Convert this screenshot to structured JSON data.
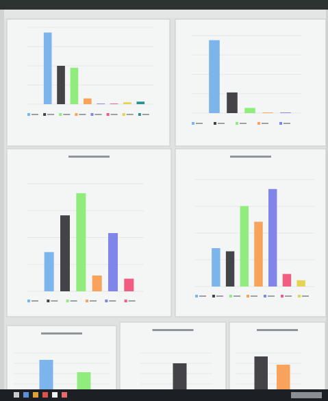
{
  "chart_data": [
    {
      "type": "bar",
      "ylim": [
        0,
        120
      ],
      "values": [
        112,
        60,
        57,
        9,
        1,
        1,
        3,
        4
      ],
      "colors": [
        "#7cb5ec",
        "#434348",
        "#90ed7d",
        "#f7a35c",
        "#8085e9",
        "#f15c80",
        "#e4d354",
        "#2b908f"
      ]
    },
    {
      "type": "bar",
      "ylim": [
        0,
        120
      ],
      "values": [
        113,
        32,
        8,
        1,
        1
      ],
      "colors": [
        "#7cb5ec",
        "#434348",
        "#90ed7d",
        "#f7a35c",
        "#8085e9"
      ]
    },
    {
      "type": "bar",
      "ylim": [
        0,
        170
      ],
      "values": [
        62,
        120,
        155,
        25,
        92,
        20
      ],
      "colors": [
        "#7cb5ec",
        "#434348",
        "#90ed7d",
        "#f7a35c",
        "#8085e9",
        "#f15c80"
      ]
    },
    {
      "type": "bar",
      "ylim": [
        0,
        170
      ],
      "values": [
        61,
        56,
        128,
        103,
        155,
        20,
        10
      ],
      "colors": [
        "#7cb5ec",
        "#434348",
        "#90ed7d",
        "#f7a35c",
        "#8085e9",
        "#f15c80",
        "#e4d354"
      ]
    },
    {
      "type": "bar",
      "ylim": [
        0,
        60
      ],
      "values": [
        50,
        32
      ],
      "colors": [
        "#7cb5ec",
        "#90ed7d"
      ]
    },
    {
      "type": "bar",
      "ylim": [
        0,
        60
      ],
      "values": [
        45
      ],
      "colors": [
        "#434348"
      ]
    },
    {
      "type": "bar",
      "ylim": [
        0,
        60
      ],
      "values": [
        55,
        43
      ],
      "colors": [
        "#434348",
        "#f7a35c"
      ]
    }
  ]
}
